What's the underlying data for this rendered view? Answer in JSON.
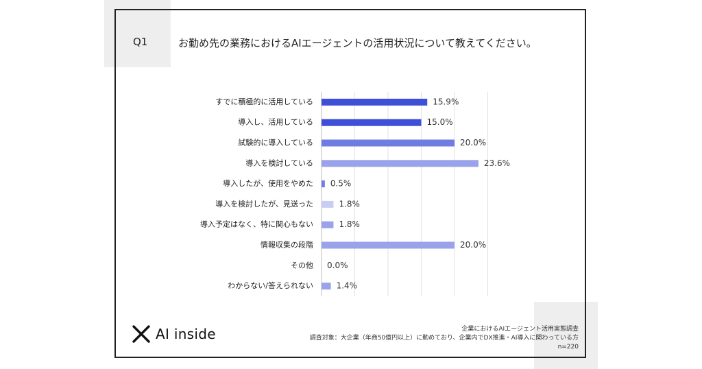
{
  "question": {
    "label": "Q1",
    "text": "お勤め先の業務におけるAIエージェントの活用状況について教えてください。"
  },
  "brand": {
    "name": "AI inside"
  },
  "footer": {
    "survey": "企業におけるAIエージェント活用実態調査",
    "target": "調査対象：大企業（年商50億円以上）に勤めており、企業内でDX推進・AI導入に関わっている方",
    "n": "n=220"
  },
  "chart_data": {
    "type": "bar",
    "orientation": "horizontal",
    "categories": [
      "すでに積極的に活用している",
      "導入し、活用している",
      "試験的に導入している",
      "導入を検討している",
      "導入したが、使用をやめた",
      "導入を検討したが、見送った",
      "導入予定はなく、特に関心もない",
      "情報収集の段階",
      "その他",
      "わからない/答えられない"
    ],
    "values": [
      15.9,
      15.0,
      20.0,
      23.6,
      0.5,
      1.8,
      1.8,
      20.0,
      0.0,
      1.4
    ],
    "value_labels": [
      "15.9%",
      "15.0%",
      "20.0%",
      "23.6%",
      "0.5%",
      "1.8%",
      "1.8%",
      "20.0%",
      "0.0%",
      "1.4%"
    ],
    "colors": [
      "#3e4fd8",
      "#3e4fd8",
      "#6f7de3",
      "#9aa3ea",
      "#6f7de3",
      "#c9cdf4",
      "#9aa3ea",
      "#9aa3ea",
      "#9aa3ea",
      "#9aa3ea"
    ],
    "xlim": [
      0,
      25
    ],
    "grid": true
  }
}
